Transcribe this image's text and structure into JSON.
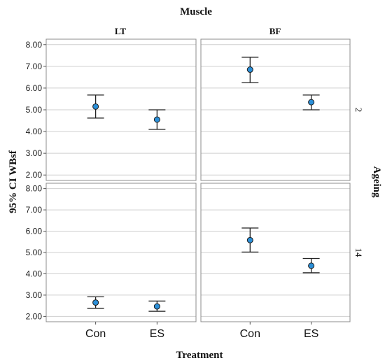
{
  "chart_data": {
    "type": "scatter",
    "subtype": "error-bar",
    "column_header": "Muscle",
    "row_header": "Ageing",
    "xlabel": "Treatment",
    "ylabel": "95% CI WBsf",
    "columns": [
      "LT",
      "BF"
    ],
    "rows": [
      "2",
      "14"
    ],
    "categories": [
      "Con",
      "ES"
    ],
    "ylim": [
      1.75,
      8.25
    ],
    "yticks": [
      "2.00",
      "3.00",
      "4.00",
      "5.00",
      "6.00",
      "7.00",
      "8.00"
    ],
    "grid": true,
    "marker_color": "#2b8fd8",
    "panels": [
      {
        "column": "LT",
        "row": "2",
        "points": [
          {
            "category": "Con",
            "mean": 5.15,
            "lower": 4.62,
            "upper": 5.68
          },
          {
            "category": "ES",
            "mean": 4.55,
            "lower": 4.1,
            "upper": 5.0
          }
        ]
      },
      {
        "column": "BF",
        "row": "2",
        "points": [
          {
            "category": "Con",
            "mean": 6.85,
            "lower": 6.25,
            "upper": 7.42
          },
          {
            "category": "ES",
            "mean": 5.35,
            "lower": 5.0,
            "upper": 5.68
          }
        ]
      },
      {
        "column": "LT",
        "row": "14",
        "points": [
          {
            "category": "Con",
            "mean": 2.65,
            "lower": 2.38,
            "upper": 2.92
          },
          {
            "category": "ES",
            "mean": 2.47,
            "lower": 2.24,
            "upper": 2.72
          }
        ]
      },
      {
        "column": "BF",
        "row": "14",
        "points": [
          {
            "category": "Con",
            "mean": 5.58,
            "lower": 5.02,
            "upper": 6.15
          },
          {
            "category": "ES",
            "mean": 4.38,
            "lower": 4.05,
            "upper": 4.72
          }
        ]
      }
    ]
  }
}
